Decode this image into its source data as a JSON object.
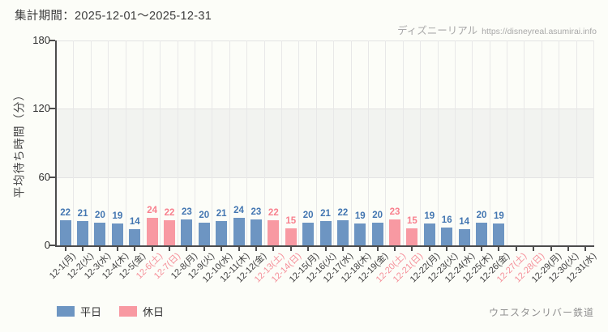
{
  "header": {
    "period_label": "集計期間：2025-12-01～2025-12-31",
    "watermark_site": "ディズニーリアル",
    "watermark_url": "https://disneyreal.asumirai.info"
  },
  "chart_data": {
    "type": "bar",
    "title": "",
    "xlabel": "",
    "ylabel": "平均待ち時間（分）",
    "ylim": [
      0,
      180
    ],
    "yticks": [
      0,
      60,
      120,
      180
    ],
    "shaded_band": [
      60,
      120
    ],
    "grid": "on",
    "legend_position": "bottom-left",
    "categories": [
      "12-1(月)",
      "12-2(火)",
      "12-3(水)",
      "12-4(木)",
      "12-5(金)",
      "12-6(土)",
      "12-7(日)",
      "12-8(月)",
      "12-9(火)",
      "12-10(水)",
      "12-11(木)",
      "12-12(金)",
      "12-13(土)",
      "12-14(日)",
      "12-15(月)",
      "12-16(火)",
      "12-17(水)",
      "12-18(木)",
      "12-19(金)",
      "12-20(土)",
      "12-21(日)",
      "12-22(月)",
      "12-23(火)",
      "12-24(水)",
      "12-25(木)",
      "12-26(金)",
      "12-27(土)",
      "12-28(日)",
      "12-29(月)",
      "12-30(火)",
      "12-31(水)"
    ],
    "day_types": [
      "weekday",
      "weekday",
      "weekday",
      "weekday",
      "weekday",
      "holiday",
      "holiday",
      "weekday",
      "weekday",
      "weekday",
      "weekday",
      "weekday",
      "holiday",
      "holiday",
      "weekday",
      "weekday",
      "weekday",
      "weekday",
      "weekday",
      "holiday",
      "holiday",
      "weekday",
      "weekday",
      "weekday",
      "weekday",
      "weekday",
      "holiday",
      "holiday",
      "weekday",
      "weekday",
      "weekday"
    ],
    "values": [
      22,
      21,
      20,
      19,
      14,
      24,
      22,
      23,
      20,
      21,
      24,
      23,
      22,
      15,
      20,
      21,
      22,
      19,
      20,
      23,
      15,
      19,
      16,
      14,
      20,
      19,
      null,
      null,
      null,
      null,
      null
    ],
    "bar_colors": {
      "weekday": "#6d95c2",
      "holiday": "#f899a2"
    },
    "value_label_colors": {
      "weekday": "#4376b1",
      "holiday": "#f8808e"
    },
    "axis_label_colors": {
      "weekday": "#3f3f3f",
      "holiday": "#f58f99"
    },
    "legend": [
      {
        "label": "平日",
        "type": "weekday",
        "color": "#6d95c2"
      },
      {
        "label": "休日",
        "type": "holiday",
        "color": "#f899a2"
      }
    ]
  },
  "footer": {
    "attraction_name": "ウエスタンリバー鉄道"
  }
}
